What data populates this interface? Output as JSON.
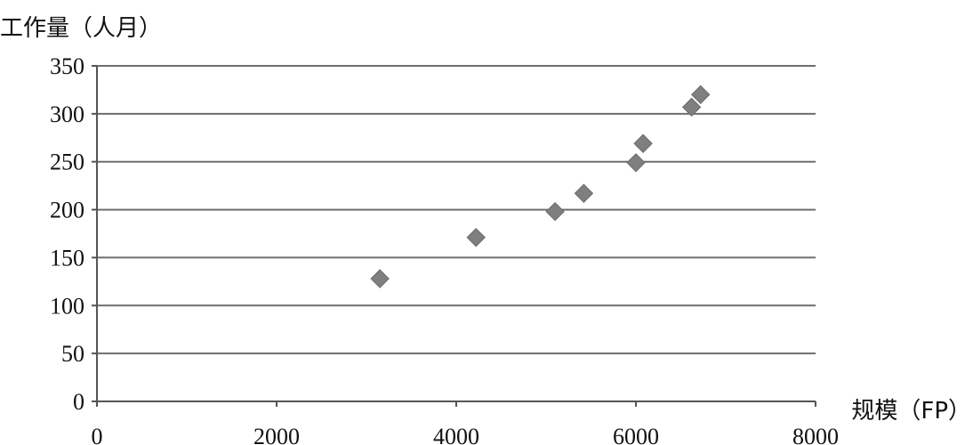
{
  "chart_data": {
    "type": "scatter",
    "title": "",
    "xlabel": "规模（FP）",
    "ylabel": "工作量（人月）",
    "xlim": [
      0,
      8000
    ],
    "ylim": [
      0,
      350
    ],
    "x_ticks": [
      "0",
      "2000",
      "4000",
      "6000",
      "8000"
    ],
    "y_ticks": [
      "0",
      "50",
      "100",
      "150",
      "200",
      "250",
      "300",
      "350"
    ],
    "grid": "horizontal",
    "legend": "none",
    "marker": "diamond",
    "marker_color": "#7f7f7f",
    "points": [
      {
        "x": 3150,
        "y": 128
      },
      {
        "x": 4220,
        "y": 171
      },
      {
        "x": 5100,
        "y": 198
      },
      {
        "x": 5420,
        "y": 217
      },
      {
        "x": 6000,
        "y": 249
      },
      {
        "x": 6080,
        "y": 269
      },
      {
        "x": 6620,
        "y": 307
      },
      {
        "x": 6720,
        "y": 320
      }
    ]
  }
}
